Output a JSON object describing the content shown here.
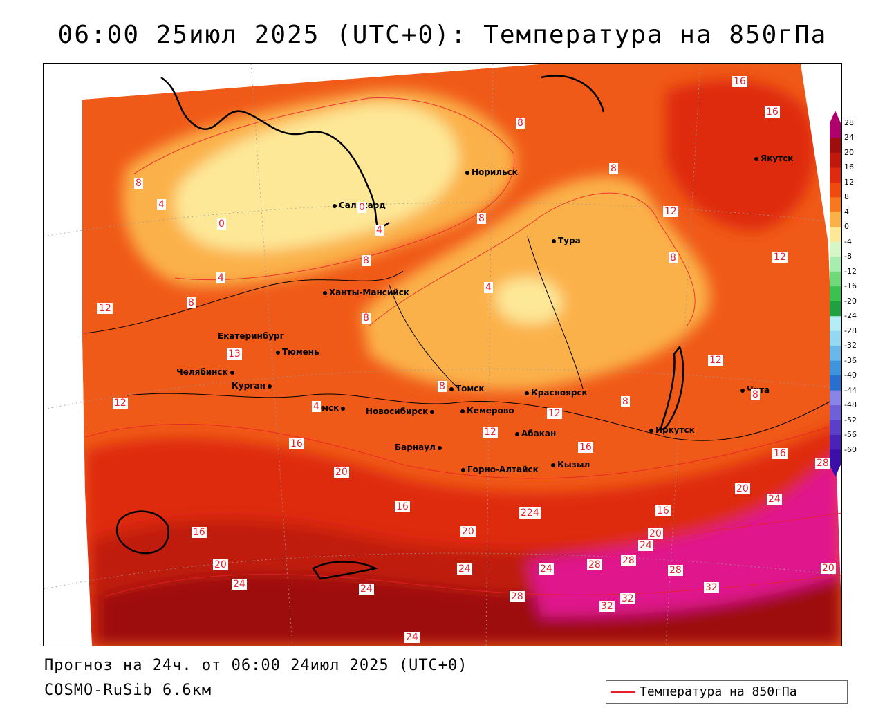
{
  "title": "06:00 25июл 2025 (UTC+0): Температура на 850гПа",
  "footer": {
    "forecast": "Прогноз на 24ч. от 06:00 24июл 2025 (UTC+0)",
    "model": "COSMO-RuSib 6.6км"
  },
  "legend": {
    "label": "Температура на 850гПа",
    "line_color": "#e8202a"
  },
  "colorbar": {
    "ticks": [
      "28",
      "24",
      "20",
      "16",
      "12",
      "8",
      "4",
      "0",
      "-4",
      "-8",
      "-12",
      "-16",
      "-20",
      "-24",
      "-28",
      "-32",
      "-36",
      "-40",
      "-44",
      "-48",
      "-52",
      "-56",
      "-60"
    ],
    "colors": [
      "#b0006b",
      "#9e0e0e",
      "#c0180c",
      "#de2a10",
      "#f04a10",
      "#f87822",
      "#fbb14a",
      "#fde898",
      "#d6f6c8",
      "#a8ecb0",
      "#70d878",
      "#3cc050",
      "#20a040",
      "#b6ecf6",
      "#94d8f2",
      "#6ab8ea",
      "#4094dc",
      "#2a6ed0",
      "#8a84e8",
      "#7060d8",
      "#5a40c8",
      "#4a22b8",
      "#3a10a8"
    ]
  },
  "cities": [
    {
      "name": "Норильск"
    },
    {
      "name": "Салехард"
    },
    {
      "name": "Тура"
    },
    {
      "name": "Якутск"
    },
    {
      "name": "Ханты-Мансийск"
    },
    {
      "name": "Екатеринбург"
    },
    {
      "name": "Тюмень"
    },
    {
      "name": "Челябинск"
    },
    {
      "name": "Курган"
    },
    {
      "name": "Омск"
    },
    {
      "name": "Новосибирск"
    },
    {
      "name": "Томск"
    },
    {
      "name": "Кемерово"
    },
    {
      "name": "Красноярск"
    },
    {
      "name": "Барнаул"
    },
    {
      "name": "Абакан"
    },
    {
      "name": "Горно-Алтайск"
    },
    {
      "name": "Кызыл"
    },
    {
      "name": "Иркутск"
    },
    {
      "name": "Чита"
    }
  ],
  "contour_labels": [
    "16",
    "16",
    "8",
    "8",
    "8",
    "12",
    "8",
    "12",
    "4",
    "0",
    "8",
    "4",
    "4",
    "0",
    "4",
    "8",
    "8",
    "12",
    "8",
    "4",
    "8",
    "13",
    "12",
    "8",
    "8",
    "12",
    "16",
    "12",
    "12",
    "16",
    "20",
    "16",
    "16",
    "224",
    "20",
    "16",
    "20",
    "24",
    "16",
    "20",
    "24",
    "28",
    "28",
    "28",
    "24",
    "20",
    "24",
    "24",
    "28",
    "32",
    "32",
    "32",
    "20",
    "24",
    "24",
    "28"
  ]
}
